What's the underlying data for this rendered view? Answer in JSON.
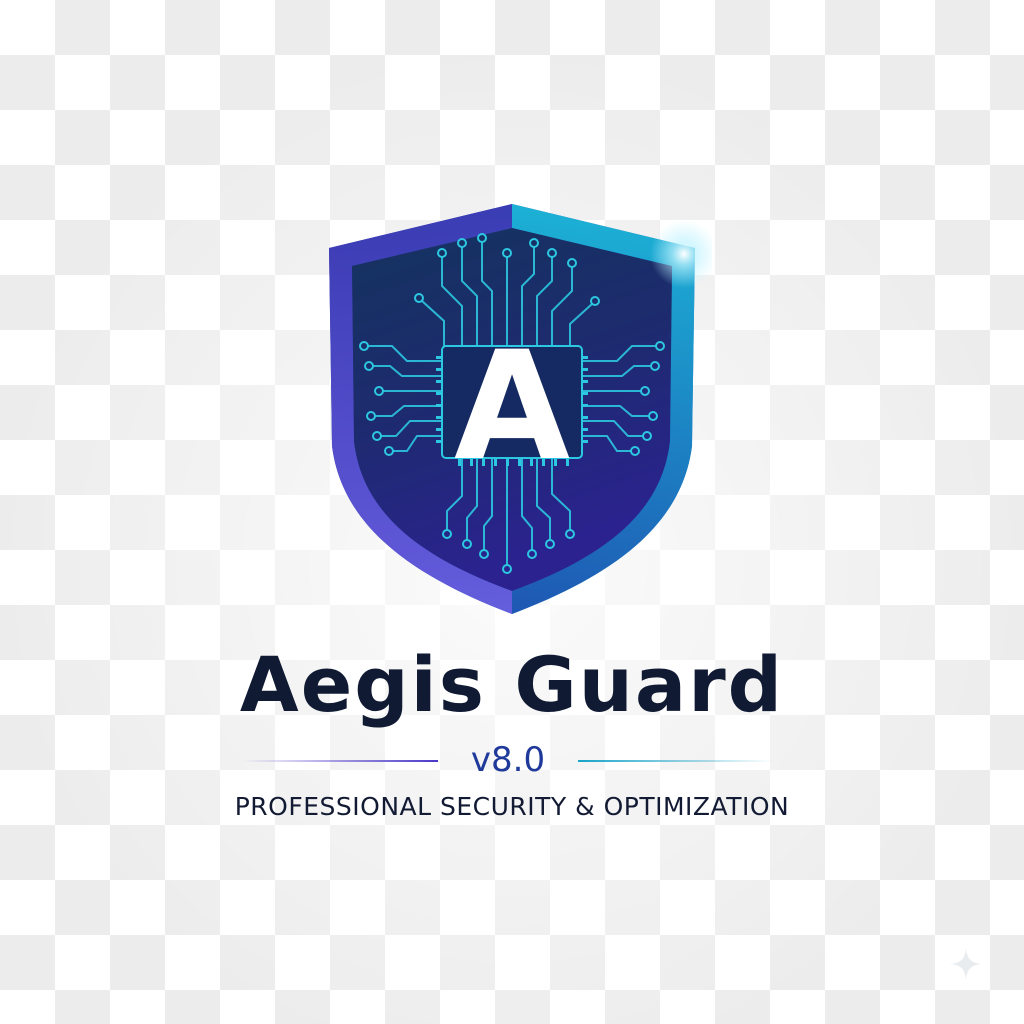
{
  "brand": {
    "name": "Aegis Guard",
    "version": "v8.0",
    "tagline": "PROFESSIONAL SECURITY & OPTIMIZATION",
    "emblem_letter": "A"
  },
  "icons": {
    "logo": "shield-circuit-icon",
    "corner": "sparkle-icon"
  },
  "colors": {
    "title": "#101a33",
    "version": "#1f3a9a",
    "shield_blue": "#2b2f9e",
    "shield_cyan": "#18b8d6",
    "circuit": "#2cc7e0"
  }
}
